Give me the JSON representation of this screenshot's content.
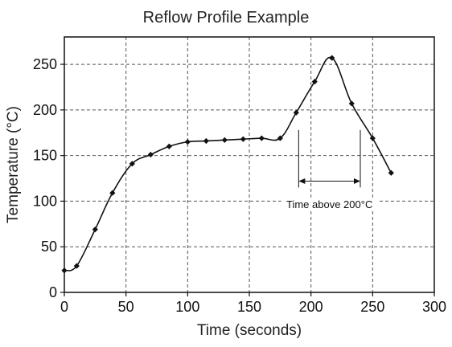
{
  "chart_data": {
    "type": "line",
    "title": "Reflow Profile Example",
    "xlabel": "Time (seconds)",
    "ylabel": "Temperature (°C)",
    "xlim": [
      0,
      300
    ],
    "ylim": [
      0,
      280
    ],
    "xticks": [
      0,
      50,
      100,
      150,
      200,
      250,
      300
    ],
    "yticks": [
      0,
      50,
      100,
      150,
      200,
      250
    ],
    "grid": true,
    "series": [
      {
        "x": [
          0,
          10,
          25,
          39,
          55,
          70,
          85,
          100,
          115,
          130,
          145,
          160,
          175,
          188,
          203,
          217,
          233,
          250,
          265
        ],
        "y": [
          24,
          29,
          69,
          109,
          141,
          151,
          160,
          165,
          166,
          167,
          168,
          169,
          169,
          197,
          231,
          257,
          207,
          169,
          131
        ]
      }
    ],
    "annotation": {
      "text": "Time above 200°C",
      "x_start": 190,
      "x_end": 240
    }
  },
  "colors": {
    "line": "#111111",
    "grid": "#555555"
  }
}
